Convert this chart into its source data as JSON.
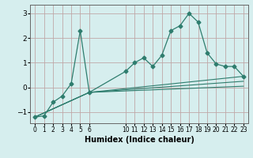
{
  "xlabel": "Humidex (Indice chaleur)",
  "bg_color": "#d6eeee",
  "grid_color": "#c0a8a8",
  "line_color": "#2e7d6e",
  "xlim": [
    -0.5,
    23.5
  ],
  "ylim": [
    -1.45,
    3.35
  ],
  "yticks": [
    -1,
    0,
    1,
    2,
    3
  ],
  "xtick_labels": [
    "0",
    "1",
    "2",
    "3",
    "4",
    "5",
    "6",
    "10",
    "11",
    "12",
    "13",
    "14",
    "15",
    "16",
    "17",
    "18",
    "19",
    "20",
    "21",
    "22",
    "23"
  ],
  "xtick_positions": [
    0,
    1,
    2,
    3,
    4,
    5,
    6,
    10,
    11,
    12,
    13,
    14,
    15,
    16,
    17,
    18,
    19,
    20,
    21,
    22,
    23
  ],
  "series": [
    {
      "x": [
        0,
        1,
        2,
        3,
        4,
        5,
        6,
        10,
        11,
        12,
        13,
        14,
        15,
        16,
        17,
        18,
        19,
        20,
        21,
        22,
        23
      ],
      "y": [
        -1.2,
        -1.15,
        -0.6,
        -0.35,
        0.15,
        2.3,
        -0.2,
        0.65,
        1.0,
        1.2,
        0.85,
        1.3,
        2.3,
        2.5,
        3.0,
        2.65,
        1.4,
        0.95,
        0.85,
        0.85,
        0.45
      ],
      "marker": "D",
      "markersize": 2.5,
      "linestyle": "-"
    },
    {
      "x": [
        0,
        6,
        23
      ],
      "y": [
        -1.2,
        -0.2,
        0.45
      ],
      "marker": null,
      "linestyle": "-"
    },
    {
      "x": [
        0,
        6,
        23
      ],
      "y": [
        -1.2,
        -0.2,
        0.25
      ],
      "marker": null,
      "linestyle": "-"
    },
    {
      "x": [
        0,
        6,
        23
      ],
      "y": [
        -1.2,
        -0.2,
        0.05
      ],
      "marker": null,
      "linestyle": "-"
    }
  ]
}
